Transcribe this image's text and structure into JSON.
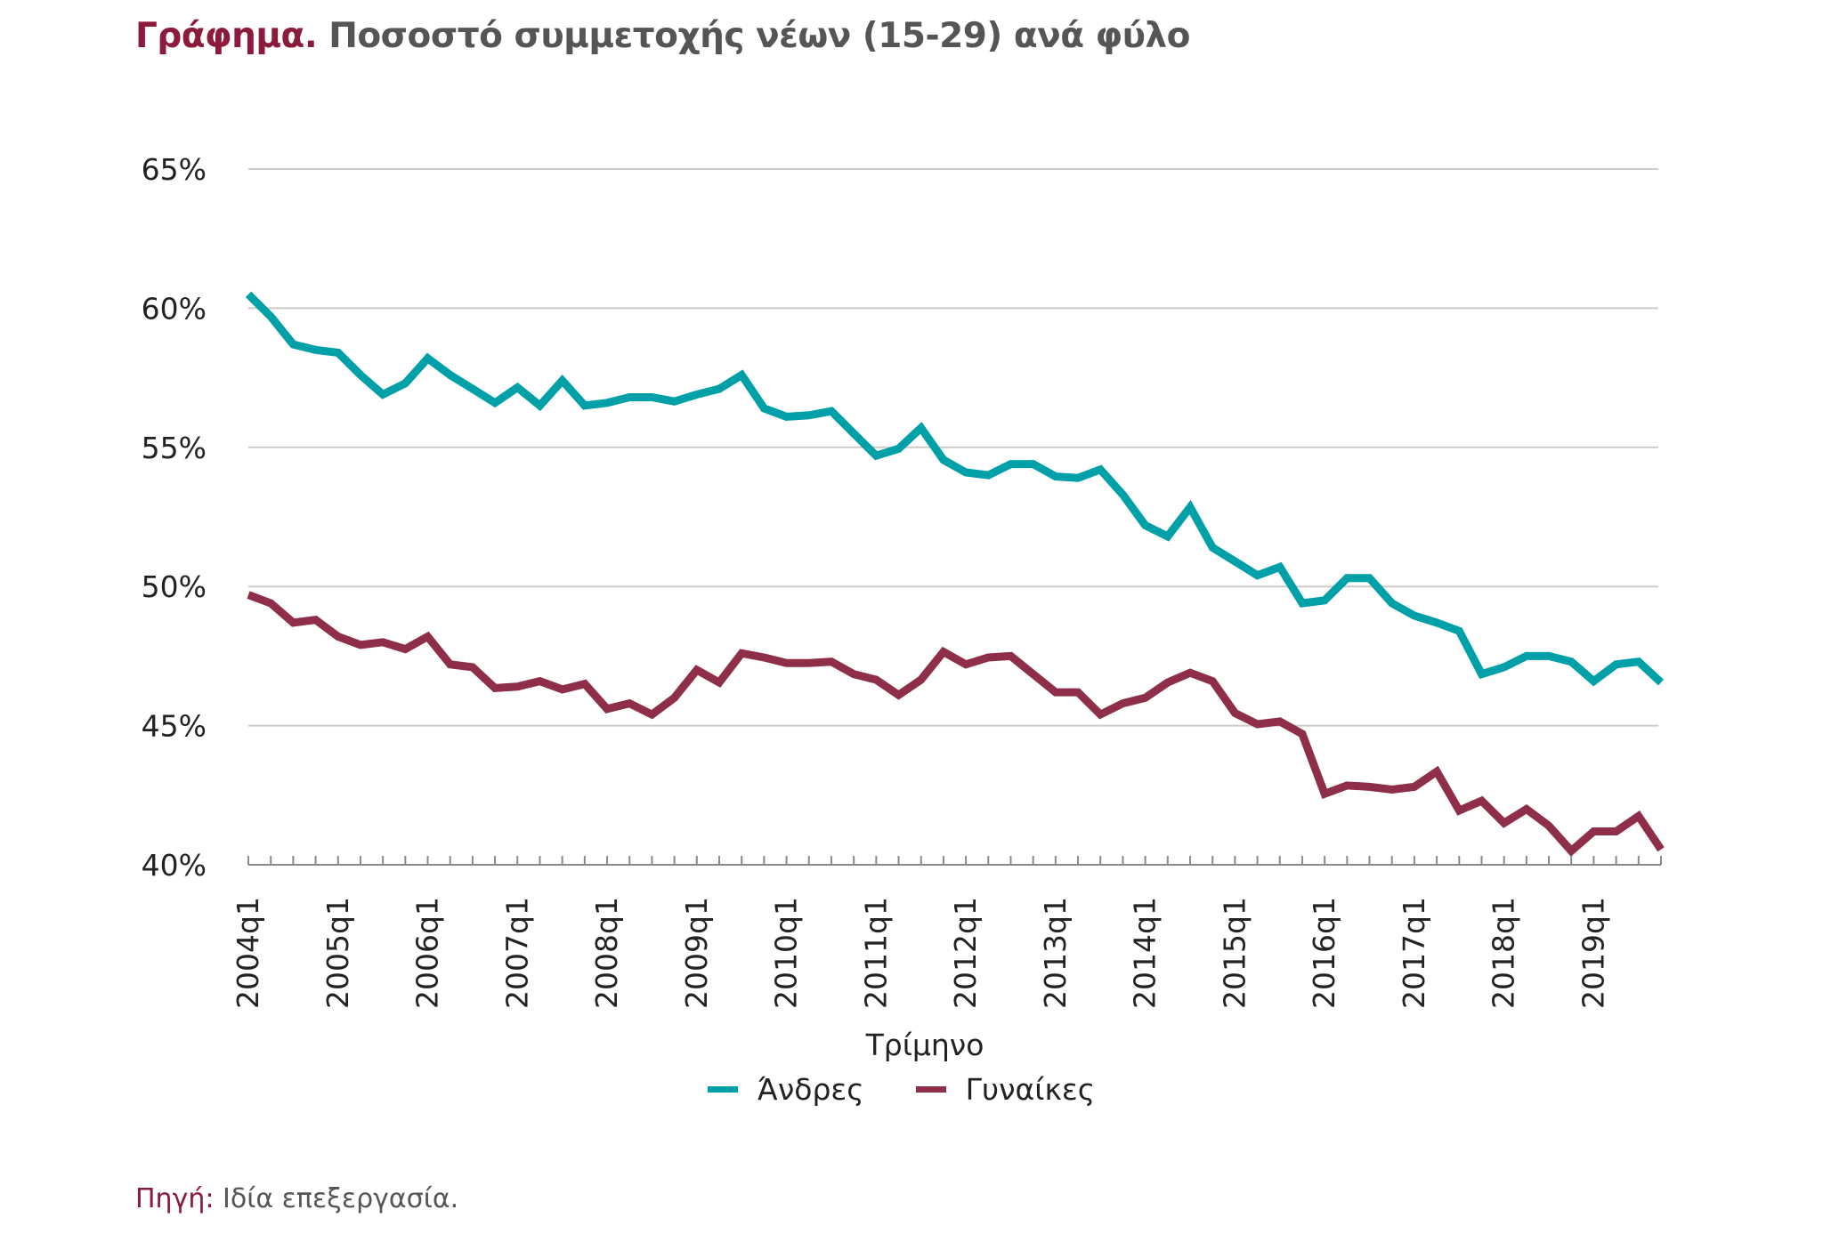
{
  "title": {
    "lead": "Γράφημα.",
    "rest": "Ποσοστό συμμετοχής νέων (15-29) ανά φύλο"
  },
  "source": {
    "lead": "Πηγή:",
    "rest": "Ιδία επεξεργασία."
  },
  "colors": {
    "men": "#00a0a8",
    "women": "#8e2e48",
    "accent": "#8b1a3c",
    "grid": "#d0cac5"
  },
  "chart_data": {
    "type": "line",
    "title": "Γράφημα. Ποσοστό συμμετοχής νέων (15-29) ανά φύλο",
    "xlabel": "Τρίμηνο",
    "ylabel": "",
    "ylim": [
      40,
      65
    ],
    "y_unit": "%",
    "y_ticks": [
      40,
      45,
      50,
      55,
      60,
      65
    ],
    "y_tick_labels": [
      "40%",
      "45%",
      "50%",
      "55%",
      "60%",
      "65%"
    ],
    "x_tick_labels": [
      "2004q1",
      "2005q1",
      "2006q1",
      "2007q1",
      "2008q1",
      "2009q1",
      "2010q1",
      "2011q1",
      "2012q1",
      "2013q1",
      "2014q1",
      "2015q1",
      "2016q1",
      "2017q1",
      "2018q1",
      "2019q1"
    ],
    "x_start": "2004q1",
    "x_end": "2019q4",
    "grid": true,
    "legend_position": "bottom",
    "series": [
      {
        "name": "Άνδρες",
        "color": "#00a0a8",
        "values": [
          60.5,
          59.7,
          58.7,
          58.5,
          58.4,
          57.6,
          56.9,
          57.3,
          58.2,
          57.6,
          57.1,
          56.6,
          57.15,
          56.5,
          57.4,
          56.5,
          56.6,
          56.8,
          56.8,
          56.65,
          56.9,
          57.1,
          57.6,
          56.4,
          56.1,
          56.15,
          56.3,
          55.5,
          54.7,
          54.95,
          55.7,
          54.55,
          54.1,
          54.0,
          54.4,
          54.4,
          53.95,
          53.9,
          54.2,
          53.3,
          52.2,
          51.8,
          52.85,
          51.4,
          50.9,
          50.4,
          50.7,
          49.4,
          49.5,
          50.3,
          50.3,
          49.4,
          48.95,
          48.7,
          48.4,
          46.85,
          47.1,
          47.5,
          47.5,
          47.3,
          46.6,
          47.2,
          47.3,
          46.55
        ]
      },
      {
        "name": "Γυναίκες",
        "color": "#8e2e48",
        "values": [
          49.7,
          49.4,
          48.7,
          48.8,
          48.2,
          47.9,
          48.0,
          47.75,
          48.2,
          47.2,
          47.1,
          46.35,
          46.4,
          46.6,
          46.3,
          46.5,
          45.6,
          45.8,
          45.4,
          46.0,
          47.0,
          46.55,
          47.6,
          47.45,
          47.25,
          47.25,
          47.3,
          46.85,
          46.65,
          46.1,
          46.65,
          47.65,
          47.2,
          47.45,
          47.5,
          46.85,
          46.2,
          46.2,
          45.4,
          45.8,
          46.0,
          46.55,
          46.9,
          46.6,
          45.45,
          45.05,
          45.15,
          44.7,
          42.55,
          42.85,
          42.8,
          42.7,
          42.8,
          43.35,
          41.95,
          42.3,
          41.5,
          42.0,
          41.4,
          40.5,
          41.2,
          41.2,
          41.75,
          40.55
        ]
      }
    ]
  }
}
